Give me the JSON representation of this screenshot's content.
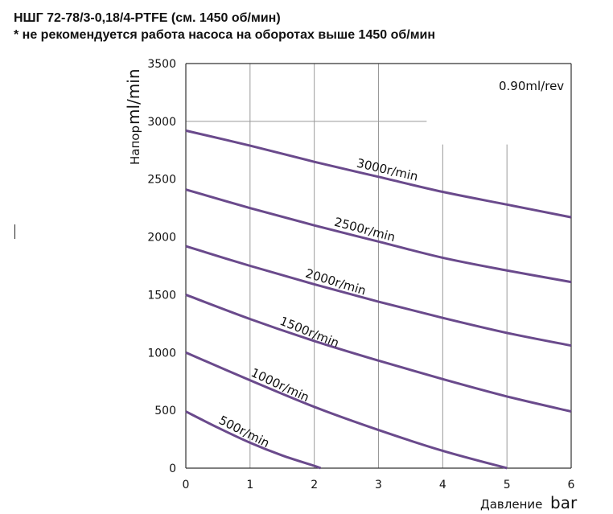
{
  "header": {
    "title": "НШГ 72-78/3-0,18/4-PTFE (см. 1450 об/мин)",
    "subtitle": "* не рекомендуется работа насоса на оборотах выше 1450 об/мин"
  },
  "chart_data": {
    "type": "line",
    "annotation": "0.90ml/rev",
    "xlabel_word": "Давление",
    "xlabel_unit": "bar",
    "ylabel_word": "Напор",
    "ylabel_unit": "ml/min",
    "xlim": [
      0,
      6
    ],
    "ylim": [
      0,
      3500
    ],
    "x_ticks": [
      "0",
      "1",
      "2",
      "3",
      "4",
      "5",
      "6"
    ],
    "y_ticks": [
      "0",
      "500",
      "1000",
      "1500",
      "2000",
      "2500",
      "3000",
      "3500"
    ],
    "grid": true,
    "line_color": "#6a4a8c",
    "series": [
      {
        "name": "3000r/min",
        "x": [
          0,
          1,
          2,
          3,
          4,
          5,
          6
        ],
        "values": [
          2920,
          2790,
          2650,
          2520,
          2390,
          2280,
          2170
        ]
      },
      {
        "name": "2500r/min",
        "x": [
          0,
          1,
          2,
          3,
          4,
          5,
          6
        ],
        "values": [
          2410,
          2250,
          2100,
          1960,
          1820,
          1710,
          1610
        ]
      },
      {
        "name": "2000r/min",
        "x": [
          0,
          1,
          2,
          3,
          4,
          5,
          6
        ],
        "values": [
          1920,
          1750,
          1590,
          1440,
          1300,
          1170,
          1060
        ]
      },
      {
        "name": "1500r/min",
        "x": [
          0,
          1,
          2,
          3,
          4,
          5,
          6
        ],
        "values": [
          1500,
          1290,
          1100,
          930,
          770,
          620,
          490
        ]
      },
      {
        "name": "1000r/min",
        "x": [
          0,
          1,
          2,
          3,
          4,
          5
        ],
        "values": [
          1000,
          760,
          530,
          330,
          150,
          0
        ]
      },
      {
        "name": "500r/min",
        "x": [
          0,
          0.5,
          1,
          1.5,
          2,
          2.1
        ],
        "values": [
          490,
          350,
          220,
          110,
          20,
          0
        ]
      }
    ]
  }
}
